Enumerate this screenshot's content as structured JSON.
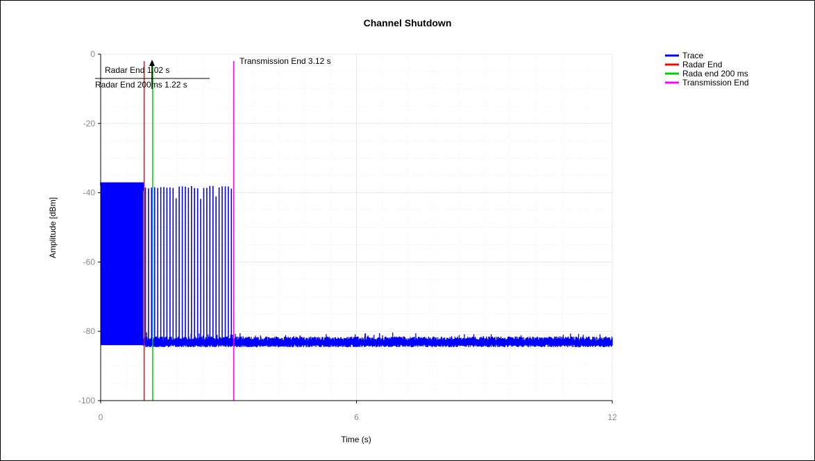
{
  "chart_data": {
    "type": "line",
    "title": "Channel Shutdown",
    "xlabel": "Time (s)",
    "ylabel": "Amplitude [dBm]",
    "xlim": [
      0,
      12
    ],
    "ylim": [
      -100,
      0
    ],
    "x_ticks": [
      0,
      6,
      12
    ],
    "y_ticks": [
      0,
      -20,
      -40,
      -60,
      -80,
      -100
    ],
    "x_tick_labels": [
      "0",
      "6",
      "12"
    ],
    "y_tick_labels": [
      "0",
      "-20",
      "-40",
      "-60",
      "-80",
      "-100"
    ],
    "grid": true,
    "legend_position": "top-right",
    "series": [
      {
        "name": "Trace",
        "color": "#0000ff",
        "description_values": {
          "active_from": 0,
          "active_to": 3.12,
          "active_high": -38,
          "active_low": -84,
          "noise_floor": -83
        }
      },
      {
        "name": "Radar End",
        "color": "#ff0000",
        "x": 1.02
      },
      {
        "name": "Rada end 200 ms",
        "color": "#00cc00",
        "x": 1.22
      },
      {
        "name": "Transmission End",
        "color": "#ff00ff",
        "x": 3.12
      }
    ],
    "annotations": [
      {
        "text": "Radar End 1.02 s"
      },
      {
        "text": "Radar End 200ms 1.22 s"
      },
      {
        "text": "Transmission End 3.12 s"
      }
    ]
  }
}
